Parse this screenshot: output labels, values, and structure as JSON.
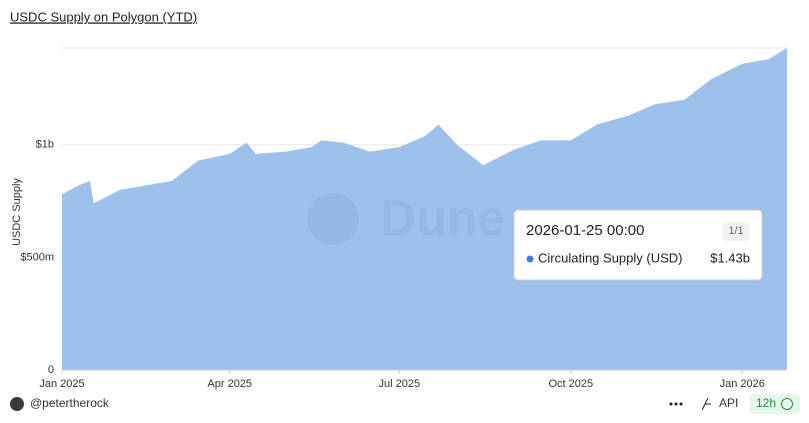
{
  "chart_data": {
    "type": "area",
    "title": "USDC Supply on Polygon (YTD)",
    "y_label": "USDC Supply",
    "watermark": "Dune",
    "x": [
      "2025-01-01",
      "2025-01-10",
      "2025-01-16",
      "2025-01-18",
      "2025-02-01",
      "2025-02-15",
      "2025-03-01",
      "2025-03-15",
      "2025-04-01",
      "2025-04-10",
      "2025-04-15",
      "2025-05-01",
      "2025-05-15",
      "2025-05-20",
      "2025-06-01",
      "2025-06-15",
      "2025-07-01",
      "2025-07-15",
      "2025-07-22",
      "2025-08-01",
      "2025-08-15",
      "2025-09-01",
      "2025-09-15",
      "2025-10-01",
      "2025-10-15",
      "2025-11-01",
      "2025-11-15",
      "2025-12-01",
      "2025-12-15",
      "2026-01-01",
      "2026-01-15",
      "2026-01-25"
    ],
    "series": [
      {
        "name": "Circulating Supply (USD)",
        "color": "#9dc1ea",
        "values": [
          780000000,
          820000000,
          840000000,
          740000000,
          800000000,
          820000000,
          840000000,
          930000000,
          960000000,
          1010000000,
          960000000,
          970000000,
          990000000,
          1020000000,
          1010000000,
          970000000,
          990000000,
          1040000000,
          1090000000,
          1000000000,
          910000000,
          980000000,
          1020000000,
          1020000000,
          1090000000,
          1130000000,
          1180000000,
          1200000000,
          1290000000,
          1360000000,
          1380000000,
          1430000000
        ]
      }
    ],
    "xlim": [
      "2025-01-01",
      "2026-01-25"
    ],
    "xticks": [
      {
        "value": "2025-01-01",
        "label": "Jan 2025"
      },
      {
        "value": "2025-04-01",
        "label": "Apr 2025"
      },
      {
        "value": "2025-07-01",
        "label": "Jul 2025"
      },
      {
        "value": "2025-10-01",
        "label": "Oct 2025"
      },
      {
        "value": "2026-01-01",
        "label": "Jan 2026"
      }
    ],
    "ylim": [
      0,
      1430000000
    ],
    "yticks": [
      0,
      {
        "value": 500000000,
        "label": "$500m"
      },
      {
        "value": 1000000000,
        "label": "$1b"
      }
    ],
    "grid": true,
    "tooltip": {
      "date": "2026-01-25 00:00",
      "page": "1/1",
      "value_label": "$1.43b"
    }
  },
  "footer": {
    "user": "@petertherock",
    "api": "API",
    "refresh": "12h"
  }
}
